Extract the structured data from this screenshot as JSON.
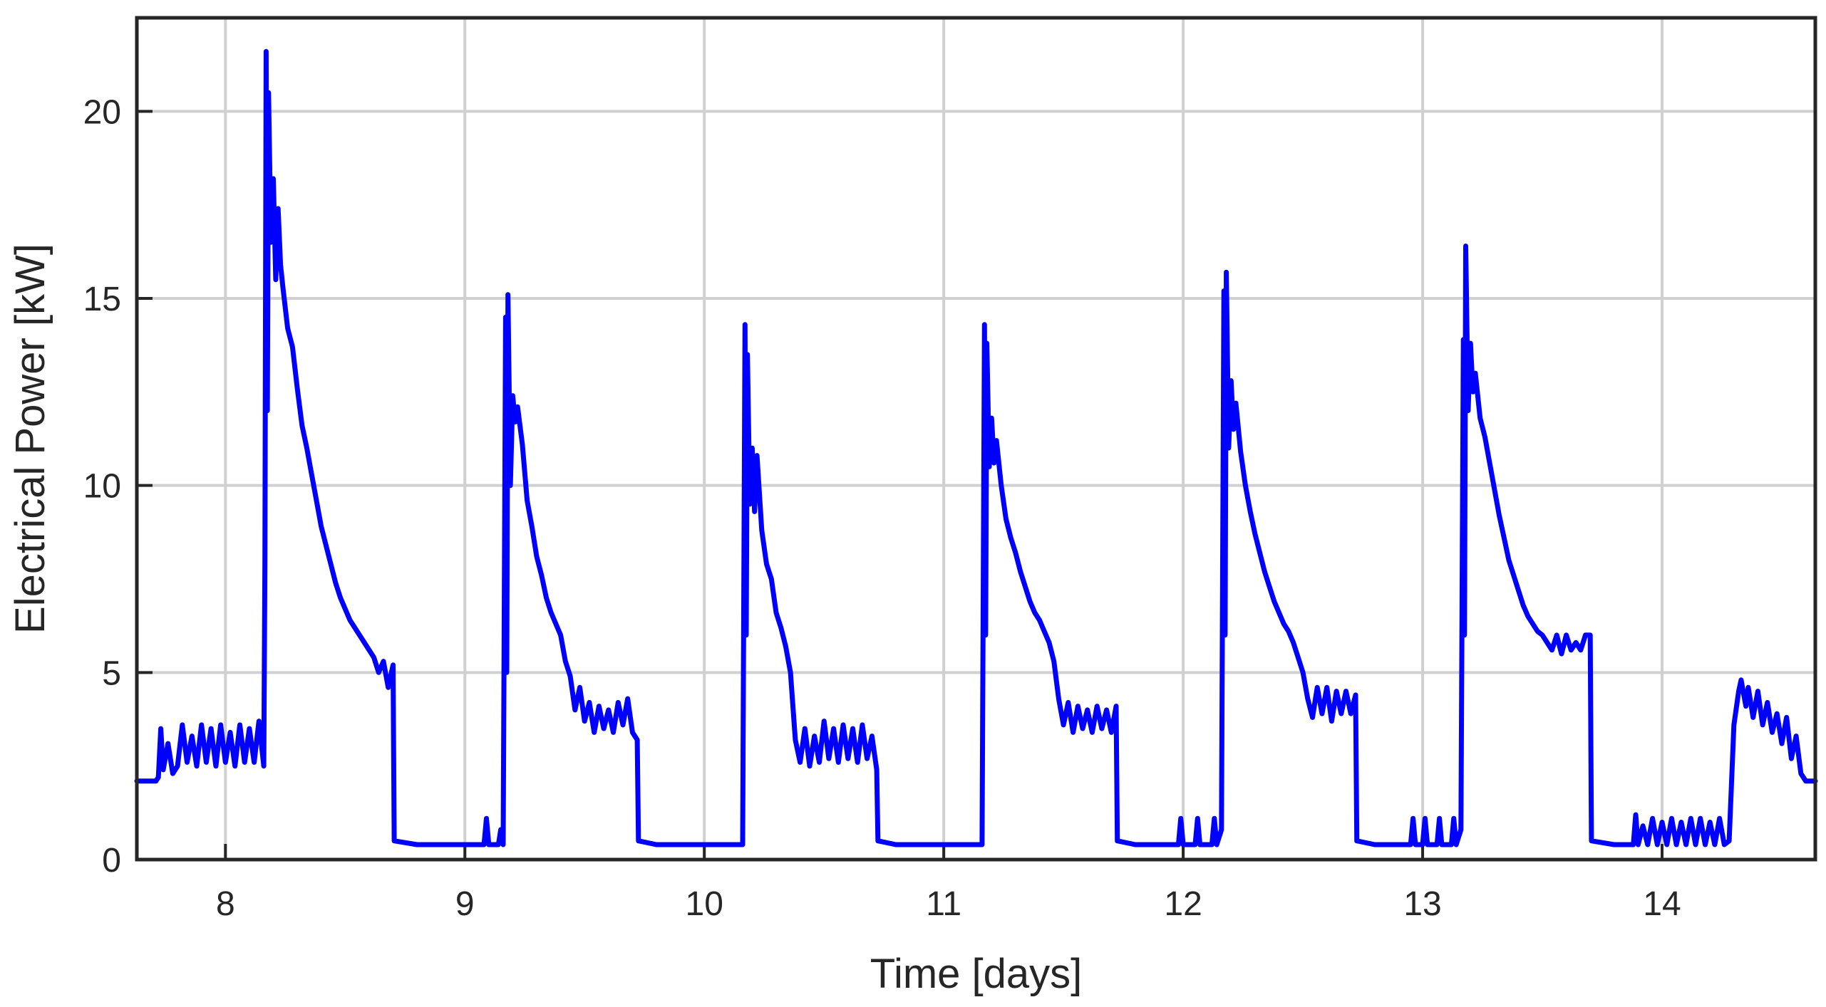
{
  "chart_data": {
    "type": "line",
    "title": "",
    "xlabel": "Time [days]",
    "ylabel": "Electrical Power [kW]",
    "xlim": [
      7.63,
      14.64
    ],
    "ylim": [
      0,
      22.5
    ],
    "xticks": [
      8,
      9,
      10,
      11,
      12,
      13,
      14
    ],
    "yticks": [
      0,
      5,
      10,
      15,
      20
    ],
    "grid": true,
    "legend": "none",
    "colors": {
      "series": "#0000ff",
      "grid": "#d0d0d0",
      "axes": "#262626"
    },
    "series": [
      {
        "values": [
          [
            7.63,
            2.1
          ],
          [
            7.71,
            2.1
          ],
          [
            7.72,
            2.2
          ],
          [
            7.73,
            3.5
          ],
          [
            7.74,
            2.4
          ],
          [
            7.76,
            3.1
          ],
          [
            7.78,
            2.3
          ],
          [
            7.8,
            2.5
          ],
          [
            7.82,
            3.6
          ],
          [
            7.84,
            2.6
          ],
          [
            7.86,
            3.3
          ],
          [
            7.88,
            2.5
          ],
          [
            7.9,
            3.6
          ],
          [
            7.92,
            2.6
          ],
          [
            7.94,
            3.5
          ],
          [
            7.96,
            2.5
          ],
          [
            7.98,
            3.6
          ],
          [
            8.0,
            2.6
          ],
          [
            8.02,
            3.4
          ],
          [
            8.04,
            2.5
          ],
          [
            8.06,
            3.6
          ],
          [
            8.08,
            2.6
          ],
          [
            8.1,
            3.5
          ],
          [
            8.12,
            2.6
          ],
          [
            8.14,
            3.7
          ],
          [
            8.16,
            2.5
          ],
          [
            8.165,
            8.0
          ],
          [
            8.17,
            21.6
          ],
          [
            8.175,
            12.0
          ],
          [
            8.18,
            20.5
          ],
          [
            8.19,
            16.5
          ],
          [
            8.2,
            18.2
          ],
          [
            8.21,
            15.5
          ],
          [
            8.22,
            17.4
          ],
          [
            8.23,
            15.9
          ],
          [
            8.24,
            15.3
          ],
          [
            8.26,
            14.2
          ],
          [
            8.28,
            13.7
          ],
          [
            8.3,
            12.6
          ],
          [
            8.32,
            11.6
          ],
          [
            8.34,
            11.0
          ],
          [
            8.36,
            10.3
          ],
          [
            8.38,
            9.6
          ],
          [
            8.4,
            8.9
          ],
          [
            8.42,
            8.4
          ],
          [
            8.44,
            7.9
          ],
          [
            8.46,
            7.4
          ],
          [
            8.48,
            7.0
          ],
          [
            8.5,
            6.7
          ],
          [
            8.52,
            6.4
          ],
          [
            8.54,
            6.2
          ],
          [
            8.56,
            6.0
          ],
          [
            8.58,
            5.8
          ],
          [
            8.6,
            5.6
          ],
          [
            8.62,
            5.4
          ],
          [
            8.64,
            5.0
          ],
          [
            8.66,
            5.3
          ],
          [
            8.68,
            4.6
          ],
          [
            8.7,
            5.2
          ],
          [
            8.705,
            0.5
          ],
          [
            8.8,
            0.4
          ],
          [
            9.0,
            0.4
          ],
          [
            9.08,
            0.4
          ],
          [
            9.09,
            1.1
          ],
          [
            9.1,
            0.4
          ],
          [
            9.14,
            0.4
          ],
          [
            9.15,
            0.8
          ],
          [
            9.16,
            0.4
          ],
          [
            9.17,
            14.5
          ],
          [
            9.175,
            5.0
          ],
          [
            9.18,
            15.1
          ],
          [
            9.19,
            10.0
          ],
          [
            9.2,
            12.4
          ],
          [
            9.21,
            11.7
          ],
          [
            9.22,
            12.1
          ],
          [
            9.24,
            11.1
          ],
          [
            9.26,
            9.6
          ],
          [
            9.28,
            8.9
          ],
          [
            9.3,
            8.1
          ],
          [
            9.32,
            7.6
          ],
          [
            9.34,
            7.0
          ],
          [
            9.36,
            6.6
          ],
          [
            9.38,
            6.3
          ],
          [
            9.4,
            6.0
          ],
          [
            9.42,
            5.3
          ],
          [
            9.44,
            4.9
          ],
          [
            9.46,
            4.0
          ],
          [
            9.48,
            4.6
          ],
          [
            9.5,
            3.7
          ],
          [
            9.52,
            4.2
          ],
          [
            9.54,
            3.4
          ],
          [
            9.56,
            4.1
          ],
          [
            9.58,
            3.5
          ],
          [
            9.6,
            4.0
          ],
          [
            9.62,
            3.4
          ],
          [
            9.64,
            4.2
          ],
          [
            9.66,
            3.6
          ],
          [
            9.68,
            4.3
          ],
          [
            9.7,
            3.4
          ],
          [
            9.72,
            3.2
          ],
          [
            9.725,
            0.5
          ],
          [
            9.8,
            0.4
          ],
          [
            10.0,
            0.4
          ],
          [
            10.16,
            0.4
          ],
          [
            10.17,
            14.3
          ],
          [
            10.175,
            6.0
          ],
          [
            10.18,
            13.5
          ],
          [
            10.19,
            9.5
          ],
          [
            10.2,
            11.0
          ],
          [
            10.21,
            9.3
          ],
          [
            10.22,
            10.8
          ],
          [
            10.24,
            8.8
          ],
          [
            10.26,
            7.9
          ],
          [
            10.28,
            7.5
          ],
          [
            10.3,
            6.6
          ],
          [
            10.32,
            6.2
          ],
          [
            10.34,
            5.7
          ],
          [
            10.36,
            5.0
          ],
          [
            10.38,
            3.2
          ],
          [
            10.4,
            2.6
          ],
          [
            10.42,
            3.5
          ],
          [
            10.44,
            2.5
          ],
          [
            10.46,
            3.3
          ],
          [
            10.48,
            2.6
          ],
          [
            10.5,
            3.7
          ],
          [
            10.52,
            2.7
          ],
          [
            10.54,
            3.5
          ],
          [
            10.56,
            2.6
          ],
          [
            10.58,
            3.6
          ],
          [
            10.6,
            2.7
          ],
          [
            10.62,
            3.5
          ],
          [
            10.64,
            2.6
          ],
          [
            10.66,
            3.6
          ],
          [
            10.68,
            2.7
          ],
          [
            10.7,
            3.3
          ],
          [
            10.72,
            2.4
          ],
          [
            10.725,
            0.5
          ],
          [
            10.8,
            0.4
          ],
          [
            11.0,
            0.4
          ],
          [
            11.16,
            0.4
          ],
          [
            11.17,
            14.3
          ],
          [
            11.175,
            6.0
          ],
          [
            11.18,
            13.8
          ],
          [
            11.19,
            10.5
          ],
          [
            11.2,
            11.8
          ],
          [
            11.21,
            10.6
          ],
          [
            11.22,
            11.2
          ],
          [
            11.24,
            10.0
          ],
          [
            11.26,
            9.1
          ],
          [
            11.28,
            8.6
          ],
          [
            11.3,
            8.2
          ],
          [
            11.32,
            7.7
          ],
          [
            11.34,
            7.3
          ],
          [
            11.36,
            6.9
          ],
          [
            11.38,
            6.6
          ],
          [
            11.4,
            6.4
          ],
          [
            11.42,
            6.1
          ],
          [
            11.44,
            5.8
          ],
          [
            11.46,
            5.3
          ],
          [
            11.48,
            4.3
          ],
          [
            11.5,
            3.6
          ],
          [
            11.52,
            4.2
          ],
          [
            11.54,
            3.4
          ],
          [
            11.56,
            4.1
          ],
          [
            11.58,
            3.5
          ],
          [
            11.6,
            4.0
          ],
          [
            11.62,
            3.4
          ],
          [
            11.64,
            4.1
          ],
          [
            11.66,
            3.5
          ],
          [
            11.68,
            4.0
          ],
          [
            11.7,
            3.4
          ],
          [
            11.72,
            4.1
          ],
          [
            11.725,
            0.5
          ],
          [
            11.8,
            0.4
          ],
          [
            11.98,
            0.4
          ],
          [
            11.99,
            1.1
          ],
          [
            12.0,
            0.4
          ],
          [
            12.05,
            0.4
          ],
          [
            12.06,
            1.1
          ],
          [
            12.07,
            0.4
          ],
          [
            12.12,
            0.4
          ],
          [
            12.13,
            1.1
          ],
          [
            12.14,
            0.4
          ],
          [
            12.16,
            0.8
          ],
          [
            12.17,
            15.2
          ],
          [
            12.175,
            6.0
          ],
          [
            12.18,
            15.7
          ],
          [
            12.19,
            11.0
          ],
          [
            12.2,
            12.8
          ],
          [
            12.21,
            11.5
          ],
          [
            12.22,
            12.2
          ],
          [
            12.24,
            10.9
          ],
          [
            12.26,
            10.0
          ],
          [
            12.28,
            9.3
          ],
          [
            12.3,
            8.7
          ],
          [
            12.32,
            8.2
          ],
          [
            12.34,
            7.7
          ],
          [
            12.36,
            7.3
          ],
          [
            12.38,
            6.9
          ],
          [
            12.4,
            6.6
          ],
          [
            12.42,
            6.3
          ],
          [
            12.44,
            6.1
          ],
          [
            12.46,
            5.8
          ],
          [
            12.48,
            5.4
          ],
          [
            12.5,
            5.0
          ],
          [
            12.52,
            4.3
          ],
          [
            12.54,
            3.8
          ],
          [
            12.56,
            4.6
          ],
          [
            12.58,
            3.9
          ],
          [
            12.6,
            4.6
          ],
          [
            12.62,
            3.7
          ],
          [
            12.64,
            4.5
          ],
          [
            12.66,
            3.9
          ],
          [
            12.68,
            4.5
          ],
          [
            12.7,
            3.9
          ],
          [
            12.72,
            4.4
          ],
          [
            12.725,
            0.5
          ],
          [
            12.8,
            0.4
          ],
          [
            12.95,
            0.4
          ],
          [
            12.96,
            1.1
          ],
          [
            12.97,
            0.4
          ],
          [
            13.0,
            0.4
          ],
          [
            13.01,
            1.1
          ],
          [
            13.02,
            0.4
          ],
          [
            13.06,
            0.4
          ],
          [
            13.07,
            1.1
          ],
          [
            13.08,
            0.4
          ],
          [
            13.12,
            0.4
          ],
          [
            13.13,
            1.1
          ],
          [
            13.14,
            0.4
          ],
          [
            13.16,
            0.8
          ],
          [
            13.17,
            13.9
          ],
          [
            13.175,
            6.0
          ],
          [
            13.18,
            16.4
          ],
          [
            13.19,
            12.0
          ],
          [
            13.2,
            13.8
          ],
          [
            13.21,
            12.5
          ],
          [
            13.22,
            13.0
          ],
          [
            13.24,
            11.8
          ],
          [
            13.26,
            11.3
          ],
          [
            13.28,
            10.6
          ],
          [
            13.3,
            9.9
          ],
          [
            13.32,
            9.2
          ],
          [
            13.34,
            8.6
          ],
          [
            13.36,
            8.0
          ],
          [
            13.38,
            7.6
          ],
          [
            13.4,
            7.2
          ],
          [
            13.42,
            6.8
          ],
          [
            13.44,
            6.5
          ],
          [
            13.46,
            6.3
          ],
          [
            13.48,
            6.1
          ],
          [
            13.5,
            6.0
          ],
          [
            13.52,
            5.8
          ],
          [
            13.54,
            5.6
          ],
          [
            13.56,
            6.0
          ],
          [
            13.58,
            5.5
          ],
          [
            13.6,
            6.0
          ],
          [
            13.62,
            5.6
          ],
          [
            13.64,
            5.8
          ],
          [
            13.66,
            5.6
          ],
          [
            13.68,
            6.0
          ],
          [
            13.7,
            6.0
          ],
          [
            13.705,
            0.5
          ],
          [
            13.8,
            0.4
          ],
          [
            13.88,
            0.4
          ],
          [
            13.89,
            1.2
          ],
          [
            13.9,
            0.4
          ],
          [
            13.92,
            0.9
          ],
          [
            13.94,
            0.4
          ],
          [
            13.96,
            1.1
          ],
          [
            13.98,
            0.4
          ],
          [
            14.0,
            1.0
          ],
          [
            14.02,
            0.4
          ],
          [
            14.04,
            1.1
          ],
          [
            14.06,
            0.4
          ],
          [
            14.08,
            1.0
          ],
          [
            14.1,
            0.4
          ],
          [
            14.12,
            1.1
          ],
          [
            14.14,
            0.4
          ],
          [
            14.16,
            1.1
          ],
          [
            14.18,
            0.4
          ],
          [
            14.2,
            1.0
          ],
          [
            14.22,
            0.4
          ],
          [
            14.24,
            1.1
          ],
          [
            14.26,
            0.4
          ],
          [
            14.28,
            0.5
          ],
          [
            14.3,
            3.6
          ],
          [
            14.32,
            4.5
          ],
          [
            14.33,
            4.8
          ],
          [
            14.35,
            4.1
          ],
          [
            14.36,
            4.6
          ],
          [
            14.38,
            3.8
          ],
          [
            14.4,
            4.5
          ],
          [
            14.42,
            3.6
          ],
          [
            14.44,
            4.2
          ],
          [
            14.46,
            3.4
          ],
          [
            14.48,
            3.9
          ],
          [
            14.5,
            3.1
          ],
          [
            14.52,
            3.8
          ],
          [
            14.54,
            2.7
          ],
          [
            14.56,
            3.3
          ],
          [
            14.58,
            2.3
          ],
          [
            14.6,
            2.1
          ],
          [
            14.64,
            2.1
          ]
        ]
      }
    ]
  }
}
